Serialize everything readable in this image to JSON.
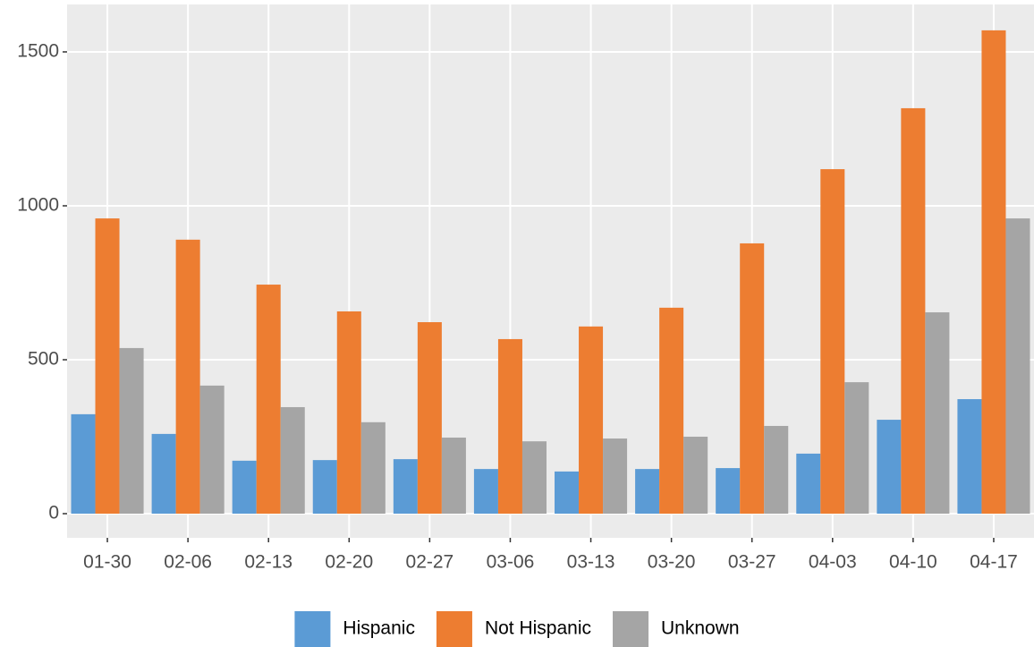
{
  "chart_data": {
    "type": "bar",
    "categories": [
      "01-30",
      "02-06",
      "02-13",
      "02-20",
      "02-27",
      "03-06",
      "03-13",
      "03-20",
      "03-27",
      "04-03",
      "04-10",
      "04-17"
    ],
    "series": [
      {
        "name": "Hispanic",
        "color": "#5B9BD5",
        "values": [
          323,
          259,
          172,
          174,
          177,
          145,
          137,
          145,
          148,
          195,
          305,
          372
        ]
      },
      {
        "name": "Not Hispanic",
        "color": "#ED7D31",
        "values": [
          959,
          890,
          744,
          657,
          622,
          567,
          608,
          669,
          878,
          1119,
          1317,
          1570
        ]
      },
      {
        "name": "Unknown",
        "color": "#A5A5A5",
        "values": [
          538,
          416,
          346,
          297,
          247,
          235,
          244,
          250,
          285,
          427,
          654,
          959
        ]
      }
    ],
    "ylim": [
      -78.5,
      1654
    ],
    "yticks": [
      0,
      500,
      1000,
      1500
    ],
    "grid": true,
    "legend": "bottom"
  }
}
